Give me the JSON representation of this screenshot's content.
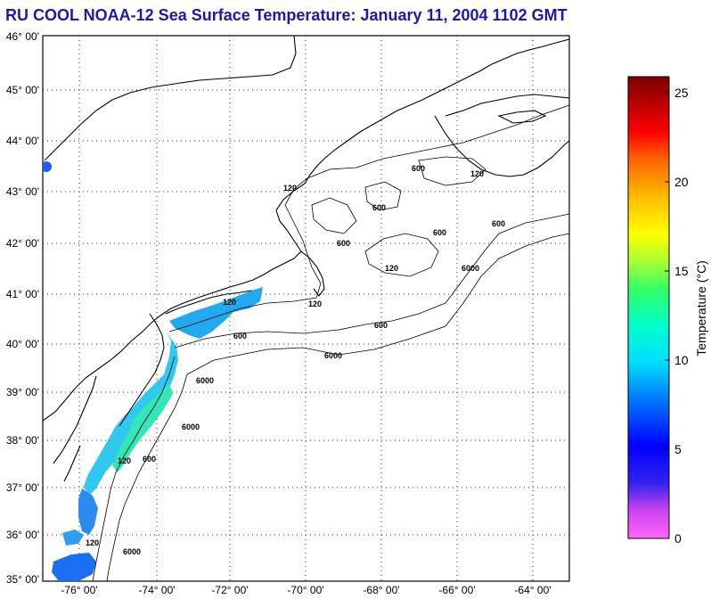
{
  "title": "RU COOL  NOAA-12  Sea Surface Temperature:  January 11, 2004 1102 GMT",
  "map": {
    "lat_labels": [
      "46° 00'",
      "45° 00'",
      "44° 00'",
      "43° 00'",
      "42° 00'",
      "41° 00'",
      "40° 00'",
      "39° 00'",
      "38° 00'",
      "37° 00'",
      "36° 00'",
      "35° 00'"
    ],
    "lon_labels": [
      "-76° 00'",
      "-74° 00'",
      "-72° 00'",
      "-70° 00'",
      "-68° 00'",
      "-66° 00'",
      "-64° 00'"
    ],
    "contour_labels": [
      "120",
      "600",
      "6000",
      "600",
      "6000",
      "600",
      "120",
      "600",
      "120",
      "6000",
      "600",
      "120",
      "600",
      "600",
      "600",
      "120",
      "6000",
      "120",
      "120",
      "6000"
    ]
  },
  "colorbar": {
    "label": "Temperature (°C)",
    "ticks": [
      "25",
      "20",
      "15",
      "10",
      "5",
      "0"
    ],
    "range": [
      0,
      26
    ]
  },
  "colors": {
    "title": "#1a1ab0",
    "land": "#ffffff",
    "coast": "#000000"
  }
}
